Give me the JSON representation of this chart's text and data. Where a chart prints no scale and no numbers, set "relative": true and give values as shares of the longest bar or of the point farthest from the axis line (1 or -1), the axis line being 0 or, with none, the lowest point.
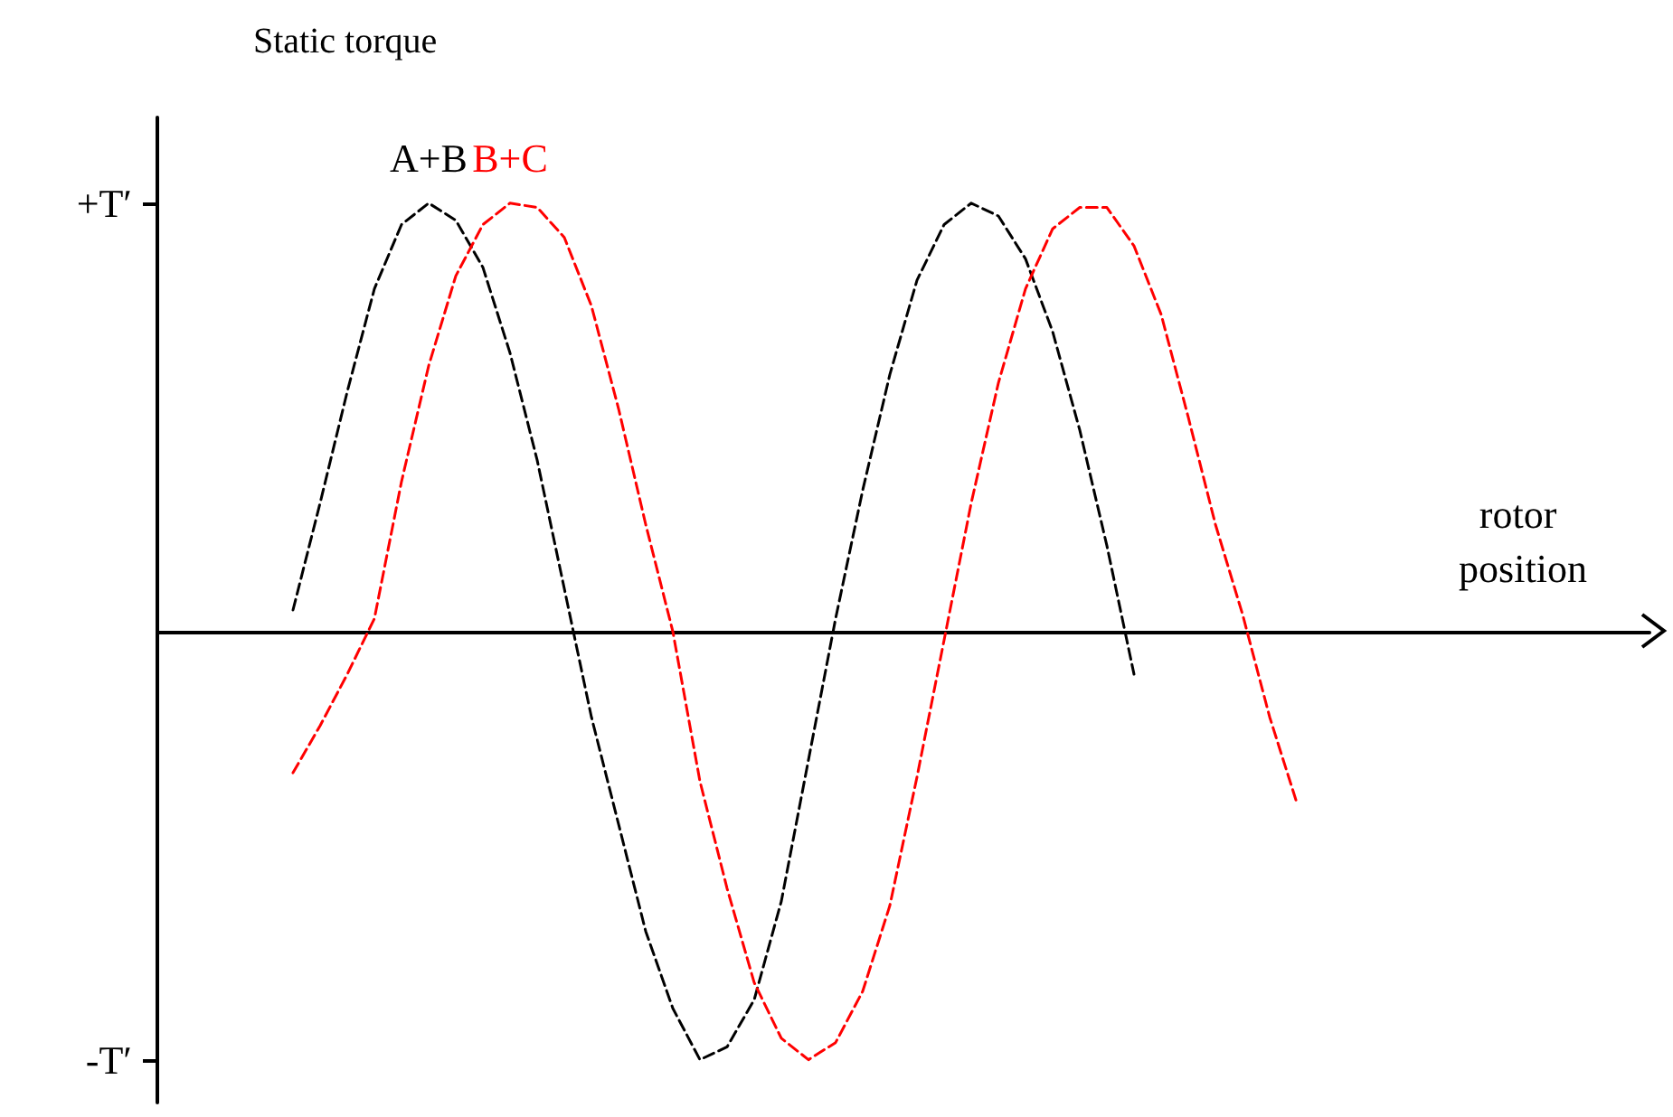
{
  "chart_data": {
    "type": "line",
    "title": "Static torque",
    "xlabel": "rotor position",
    "line_style": "dashed",
    "marker": "none",
    "relative": true,
    "annotations": [
      "+T′",
      "-T′"
    ],
    "categories": [
      null,
      null,
      null,
      null,
      null,
      null,
      null,
      null,
      null,
      null,
      null,
      null,
      null,
      null,
      null,
      null,
      null,
      null,
      null,
      null,
      null,
      null,
      null,
      null,
      null,
      null,
      null,
      null,
      null,
      null,
      null,
      null,
      null,
      null,
      null,
      null,
      null,
      null,
      null,
      null,
      null,
      null,
      null,
      null,
      null,
      null,
      null,
      null,
      null,
      null,
      null,
      null,
      null,
      null,
      null,
      null
    ],
    "series": [
      {
        "name": "A+B",
        "color": "#000000",
        "values": [
          null,
          null,
          null,
          null,
          null,
          0.05,
          0.3,
          0.56,
          0.8,
          0.95,
          1,
          0.96,
          0.85,
          0.65,
          0.4,
          0.1,
          -0.2,
          -0.45,
          -0.7,
          -0.88,
          -1,
          -0.97,
          -0.86,
          -0.63,
          -0.3,
          0.03,
          0.33,
          0.6,
          0.82,
          0.95,
          1,
          0.97,
          0.87,
          0.7,
          0.47,
          0.2,
          -0.1,
          null,
          null,
          null,
          null,
          null,
          null,
          null,
          null,
          null,
          null,
          null,
          null,
          null,
          null,
          null,
          null,
          null,
          null,
          null
        ]
      },
      {
        "name": "B+C",
        "color": "#ff0000",
        "values": [
          null,
          null,
          null,
          null,
          null,
          -0.33,
          -0.22,
          -0.1,
          0.03,
          0.35,
          0.62,
          0.83,
          0.95,
          1,
          0.99,
          0.92,
          0.76,
          0.52,
          0.25,
          0,
          -0.35,
          -0.6,
          -0.82,
          -0.95,
          -1,
          -0.96,
          -0.84,
          -0.64,
          -0.34,
          -0.02,
          0.3,
          0.58,
          0.8,
          0.94,
          0.99,
          0.99,
          0.9,
          0.74,
          0.5,
          0.25,
          0.04,
          -0.2,
          -0.4,
          null,
          null,
          null,
          null,
          null,
          null,
          null,
          null,
          null,
          null,
          null,
          null,
          null
        ]
      }
    ]
  }
}
